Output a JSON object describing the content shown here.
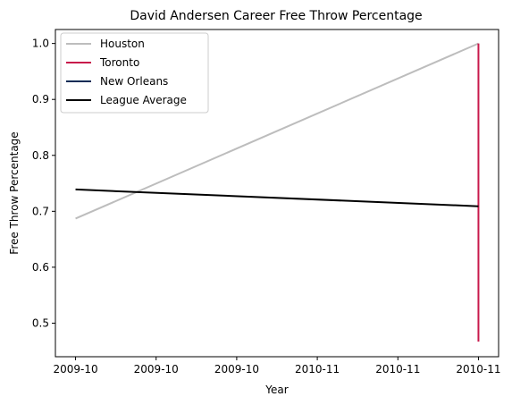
{
  "chart_data": {
    "type": "line",
    "title": "David Andersen Career Free Throw Percentage",
    "xlabel": "Year",
    "ylabel": "Free Throw Percentage",
    "x_ticks": [
      "2009-10",
      "2009-10",
      "2009-10",
      "2010-11",
      "2010-11",
      "2010-11"
    ],
    "xlim": [
      -0.05,
      1.05
    ],
    "ylim": [
      0.44,
      1.025
    ],
    "y_ticks": [
      0.5,
      0.6,
      0.7,
      0.8,
      0.9,
      1.0
    ],
    "grid": false,
    "legend_position": "top-left",
    "series": [
      {
        "name": "Houston",
        "color": "#bdbdbd",
        "points": [
          [
            0,
            0.687
          ],
          [
            1,
            1.0
          ]
        ]
      },
      {
        "name": "Toronto",
        "color": "#c8194b",
        "points": [
          [
            1,
            0.467
          ],
          [
            1,
            1.0
          ]
        ]
      },
      {
        "name": "New Orleans",
        "color": "#0c2c56",
        "points": []
      },
      {
        "name": "League Average",
        "color": "#000000",
        "points": [
          [
            0,
            0.739
          ],
          [
            1,
            0.709
          ]
        ]
      }
    ]
  }
}
